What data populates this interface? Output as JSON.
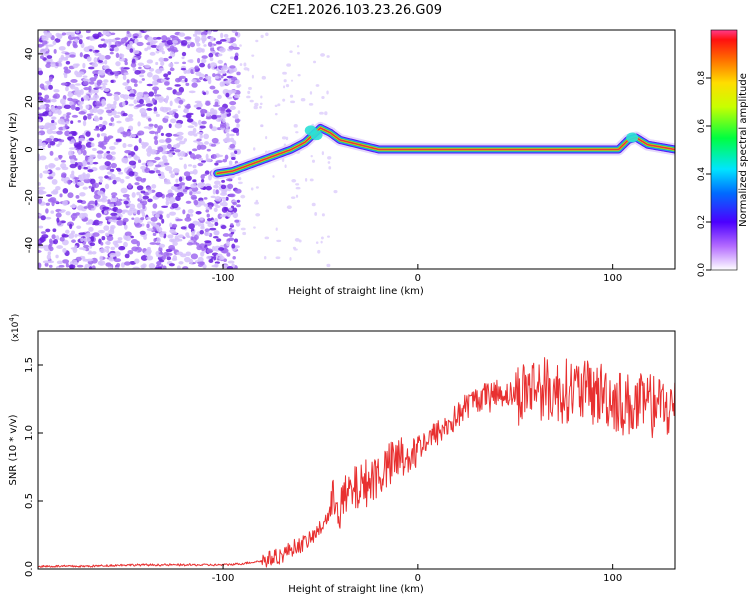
{
  "title": "C2E1.2026.103.23.26.G09",
  "colors": {
    "snr_line": "#e83030",
    "ridge_core": "#e23a3a",
    "speckle": "#6a1fe0",
    "axis": "#000000"
  },
  "chart_data": [
    {
      "type": "heatmap",
      "title": "C2E1.2026.103.23.26.G09",
      "xlabel": "Height of straight line (km)",
      "ylabel": "Frequency (Hz)",
      "xlim": [
        -195,
        132
      ],
      "ylim": [
        -50,
        50
      ],
      "xticks": [
        -100,
        0,
        100
      ],
      "xtick_labels": [
        "-100",
        "0",
        "100"
      ],
      "yticks": [
        -40,
        -20,
        0,
        20,
        40
      ],
      "ytick_labels": [
        "-40",
        "-20",
        "0",
        "20",
        "40"
      ],
      "colorbar": {
        "label": "Normalized spectral amplitude",
        "range": [
          0,
          1
        ],
        "ticks": [
          0.0,
          0.2,
          0.4,
          0.6,
          0.8
        ],
        "tick_labels": [
          "0.0",
          "0.2",
          "0.4",
          "0.6",
          "0.8"
        ]
      },
      "noise_region": {
        "x_from": -195,
        "x_to": -92,
        "amplitude": "low (0.1-0.3)"
      },
      "ridge": {
        "x": [
          -103,
          -95,
          -85,
          -75,
          -65,
          -58,
          -54,
          -50,
          -45,
          -40,
          -35,
          -30,
          -25,
          -20,
          -10,
          0,
          20,
          60,
          95,
          103,
          108,
          112,
          118,
          125,
          132
        ],
        "y": [
          -10,
          -9,
          -6,
          -3,
          0,
          3,
          6,
          9,
          7,
          4,
          3,
          2,
          1,
          0,
          0,
          0,
          0,
          0,
          0,
          0,
          4,
          5,
          2,
          1,
          0
        ]
      }
    },
    {
      "type": "line",
      "xlabel": "Height of straight line (km)",
      "ylabel": "SNR (10 * v/v)",
      "y_multiplier": "(x10",
      "y_multiplier_exp": "4",
      "y_multiplier_close": ")",
      "xlim": [
        -195,
        132
      ],
      "ylim": [
        0,
        1.75
      ],
      "xticks": [
        -100,
        0,
        100
      ],
      "xtick_labels": [
        "-100",
        "0",
        "100"
      ],
      "yticks": [
        0.0,
        0.5,
        1.0,
        1.5
      ],
      "ytick_labels": [
        "0.0",
        "0.5",
        "1.0",
        "1.5"
      ],
      "series": [
        {
          "name": "SNR",
          "x": [
            -195,
            -170,
            -150,
            -130,
            -110,
            -100,
            -90,
            -80,
            -75,
            -70,
            -65,
            -60,
            -55,
            -50,
            -45,
            -42,
            -40,
            -38,
            -35,
            -30,
            -25,
            -20,
            -15,
            -10,
            -5,
            0,
            5,
            10,
            15,
            20,
            25,
            30,
            40,
            50,
            60,
            70,
            80,
            90,
            95,
            100,
            105,
            110,
            120,
            132
          ],
          "y": [
            0.02,
            0.02,
            0.03,
            0.03,
            0.03,
            0.03,
            0.04,
            0.06,
            0.08,
            0.1,
            0.15,
            0.18,
            0.22,
            0.3,
            0.42,
            0.55,
            0.45,
            0.5,
            0.55,
            0.6,
            0.65,
            0.7,
            0.75,
            0.8,
            0.85,
            0.9,
            0.95,
            1.0,
            1.05,
            1.12,
            1.2,
            1.25,
            1.3,
            1.28,
            1.35,
            1.3,
            1.32,
            1.28,
            1.3,
            1.25,
            1.22,
            1.2,
            1.2,
            1.18
          ]
        }
      ]
    }
  ]
}
